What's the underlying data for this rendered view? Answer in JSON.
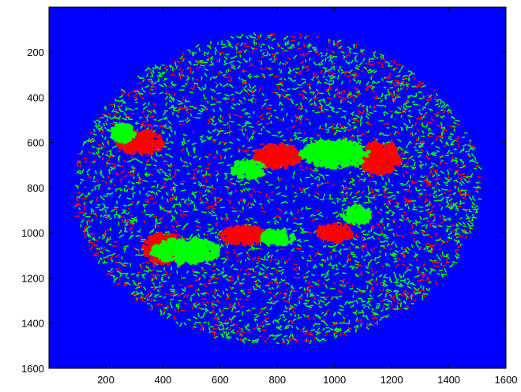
{
  "chart_data": {
    "type": "heatmap",
    "title": "",
    "xlabel": "",
    "ylabel": "",
    "xlim": [
      1,
      1600
    ],
    "ylim": [
      1,
      1600
    ],
    "y_reversed": true,
    "grid": false,
    "x_ticks": [
      200,
      400,
      600,
      800,
      1000,
      1200,
      1400,
      1600
    ],
    "y_ticks": [
      200,
      400,
      600,
      800,
      1000,
      1200,
      1400,
      1600
    ],
    "colors": {
      "background": "#0000ff",
      "class_green": "#00ff00",
      "class_red": "#ff0000"
    },
    "disk": {
      "cx": 800,
      "cy": 800,
      "rx": 710,
      "ry": 690
    },
    "clusters": [
      {
        "color": "red",
        "x": 1160,
        "y": 670,
        "rx": 70,
        "ry": 70
      },
      {
        "color": "green",
        "x": 1000,
        "y": 650,
        "rx": 120,
        "ry": 60
      },
      {
        "color": "red",
        "x": 400,
        "y": 1070,
        "rx": 70,
        "ry": 65
      },
      {
        "color": "green",
        "x": 480,
        "y": 1080,
        "rx": 120,
        "ry": 55
      },
      {
        "color": "red",
        "x": 680,
        "y": 1010,
        "rx": 80,
        "ry": 40
      },
      {
        "color": "green",
        "x": 800,
        "y": 1020,
        "rx": 60,
        "ry": 35
      },
      {
        "color": "red",
        "x": 800,
        "y": 660,
        "rx": 80,
        "ry": 50
      },
      {
        "color": "green",
        "x": 700,
        "y": 720,
        "rx": 60,
        "ry": 40
      },
      {
        "color": "red",
        "x": 320,
        "y": 600,
        "rx": 80,
        "ry": 50
      },
      {
        "color": "green",
        "x": 260,
        "y": 560,
        "rx": 40,
        "ry": 40
      },
      {
        "color": "red",
        "x": 1000,
        "y": 1000,
        "rx": 60,
        "ry": 40
      },
      {
        "color": "green",
        "x": 1080,
        "y": 920,
        "rx": 50,
        "ry": 40
      }
    ]
  }
}
